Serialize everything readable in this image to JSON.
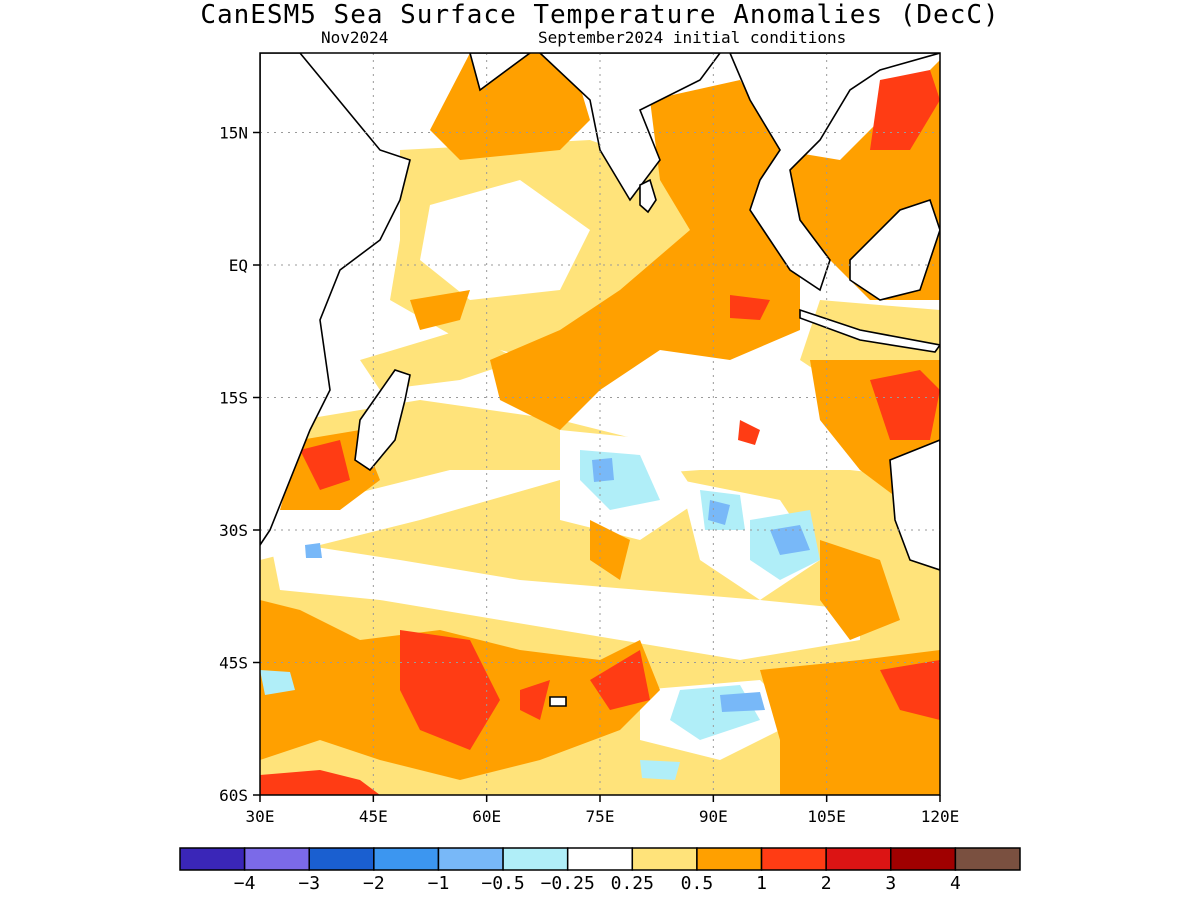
{
  "title": "CanESM5 Sea Surface Temperature Anomalies (DecC)",
  "subtitle_left": "Nov2024",
  "subtitle_right": "September2024 initial conditions",
  "map": {
    "lon_range": [
      30,
      120
    ],
    "lat_range": [
      -60,
      24
    ],
    "lat_ticks": [
      {
        "value": 15,
        "label": "15N"
      },
      {
        "value": 0,
        "label": "EQ"
      },
      {
        "value": -15,
        "label": "15S"
      },
      {
        "value": -30,
        "label": "30S"
      },
      {
        "value": -45,
        "label": "45S"
      },
      {
        "value": -60,
        "label": "60S"
      }
    ],
    "lon_ticks": [
      {
        "value": 30,
        "label": "30E"
      },
      {
        "value": 45,
        "label": "45E"
      },
      {
        "value": 60,
        "label": "60E"
      },
      {
        "value": 75,
        "label": "75E"
      },
      {
        "value": 90,
        "label": "90E"
      },
      {
        "value": 105,
        "label": "105E"
      },
      {
        "value": 120,
        "label": "120E"
      }
    ]
  },
  "colorbar": {
    "colors": [
      "#3a26b8",
      "#7b6ae8",
      "#1a5fd0",
      "#3c96f0",
      "#78b8f8",
      "#b0eef8",
      "#ffffff",
      "#ffe37a",
      "#ffa000",
      "#ff3c14",
      "#dc1414",
      "#a00000",
      "#7a5040"
    ],
    "labels": [
      "−4",
      "−3",
      "−2",
      "−1",
      "−0.5",
      "−0.25",
      "0.25",
      "0.5",
      "1",
      "2",
      "3",
      "4"
    ]
  }
}
